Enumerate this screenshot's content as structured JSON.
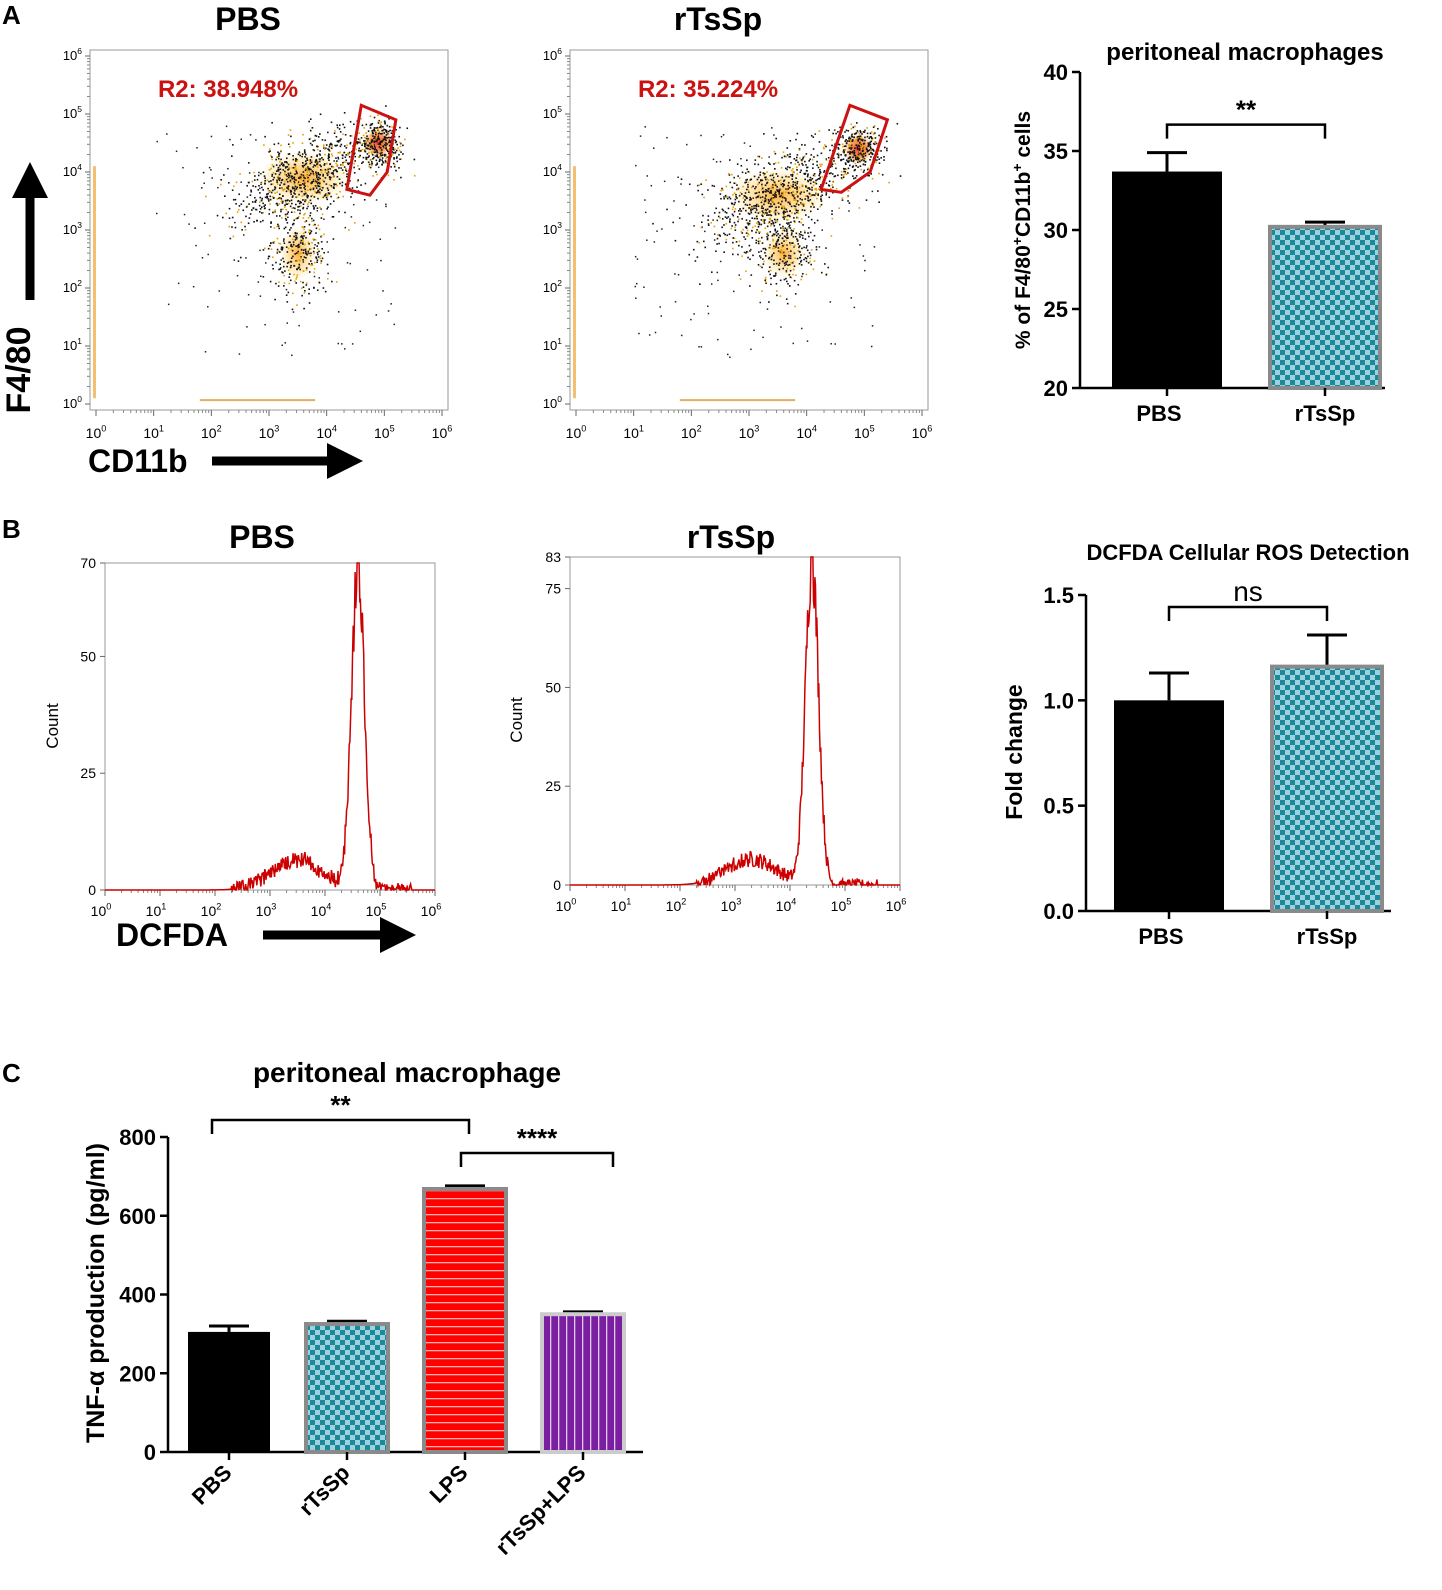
{
  "figure": {
    "panel_labels": [
      "A",
      "B",
      "C"
    ]
  },
  "chart_data": [
    {
      "type": "scatter",
      "id": "flow_pbs",
      "title": "PBS",
      "gate_label": "R2: 38.948%",
      "x_axis_label": "CD11b",
      "y_axis_label": "F4/80",
      "x_ticks": [
        "0",
        "1",
        "2",
        "3",
        "4",
        "5",
        "6"
      ],
      "y_ticks": [
        "0",
        "1",
        "2",
        "3",
        "4",
        "5",
        "6"
      ],
      "tick_base": "10",
      "xlim": [
        0,
        6
      ],
      "ylim": [
        0,
        6
      ],
      "clusters": [
        {
          "name": "main",
          "center": [
            3.6,
            3.9
          ],
          "spread": [
            0.75,
            0.45
          ]
        },
        {
          "name": "gate",
          "center": [
            4.9,
            4.5
          ],
          "spread": [
            0.25,
            0.25
          ]
        },
        {
          "name": "lower",
          "center": [
            3.5,
            2.6
          ],
          "spread": [
            0.3,
            0.45
          ]
        }
      ],
      "gate_polygon": [
        [
          4.35,
          3.7
        ],
        [
          4.6,
          5.15
        ],
        [
          5.2,
          4.9
        ],
        [
          5.05,
          4.0
        ],
        [
          4.75,
          3.6
        ]
      ]
    },
    {
      "type": "scatter",
      "id": "flow_rtssp",
      "title": "rTsSp",
      "gate_label": "R2: 35.224%",
      "x_axis_label": "",
      "y_axis_label": "",
      "x_ticks": [
        "0",
        "1",
        "2",
        "3",
        "4",
        "5",
        "6"
      ],
      "y_ticks": [
        "0",
        "1",
        "2",
        "3",
        "4",
        "5",
        "6"
      ],
      "tick_base": "10",
      "xlim": [
        0,
        6
      ],
      "ylim": [
        0,
        6
      ],
      "clusters": [
        {
          "name": "main",
          "center": [
            3.5,
            3.6
          ],
          "spread": [
            0.8,
            0.45
          ]
        },
        {
          "name": "gate",
          "center": [
            4.9,
            4.4
          ],
          "spread": [
            0.25,
            0.25
          ]
        },
        {
          "name": "lower",
          "center": [
            3.6,
            2.6
          ],
          "spread": [
            0.35,
            0.4
          ]
        }
      ],
      "gate_polygon": [
        [
          4.25,
          3.7
        ],
        [
          4.75,
          5.15
        ],
        [
          5.4,
          4.9
        ],
        [
          5.1,
          4.0
        ],
        [
          4.6,
          3.65
        ]
      ]
    },
    {
      "type": "bar",
      "id": "bar_macrophages",
      "title": "peritoneal macrophages",
      "ylabel_prefix": "% of F4/80",
      "ylabel_mid": "CD11b",
      "ylabel_suffix": " cells",
      "ylabel_sup": "+",
      "categories": [
        "PBS",
        "rTsSp"
      ],
      "values": [
        33.7,
        30.2
      ],
      "errors": [
        1.2,
        0.3
      ],
      "ylim": [
        20,
        40
      ],
      "yticks": [
        "20",
        "25",
        "30",
        "35",
        "40"
      ],
      "significance": [
        {
          "between": [
            0,
            1
          ],
          "label": "**"
        }
      ],
      "colors": [
        "#000000",
        "#1a8a9a"
      ]
    },
    {
      "type": "histogram",
      "id": "hist_pbs",
      "title": "PBS",
      "x_axis_label": "DCFDA",
      "ylabel": "Count",
      "y_ticks": [
        "0",
        "25",
        "50",
        "70"
      ],
      "x_ticks": [
        "0",
        "1",
        "2",
        "3",
        "4",
        "5",
        "6"
      ],
      "tick_base": "10",
      "ylim": [
        0,
        70
      ],
      "peak_log": 4.6,
      "peak_count": 70,
      "color": "#cc0000"
    },
    {
      "type": "histogram",
      "id": "hist_rtssp",
      "title": "rTsSp",
      "x_axis_label": "",
      "ylabel": "Count",
      "y_ticks": [
        "0",
        "25",
        "50",
        "75",
        "83"
      ],
      "x_ticks": [
        "0",
        "1",
        "2",
        "3",
        "4",
        "5",
        "6"
      ],
      "tick_base": "10",
      "ylim": [
        0,
        83
      ],
      "peak_log": 4.4,
      "peak_count": 83,
      "color": "#cc0000"
    },
    {
      "type": "bar",
      "id": "bar_ros",
      "title": "DCFDA Cellular ROS Detection",
      "ylabel": "Fold change",
      "categories": [
        "PBS",
        "rTsSp"
      ],
      "values": [
        1.0,
        1.16
      ],
      "errors": [
        0.13,
        0.15
      ],
      "ylim": [
        0.0,
        1.5
      ],
      "yticks": [
        "0.0",
        "0.5",
        "1.0",
        "1.5"
      ],
      "significance": [
        {
          "between": [
            0,
            1
          ],
          "label": "ns"
        }
      ],
      "colors": [
        "#000000",
        "#1a8a9a"
      ]
    },
    {
      "type": "bar",
      "id": "bar_tnf",
      "title": "peritoneal macrophage",
      "ylabel": "TNF-α production (pg/ml)",
      "categories": [
        "PBS",
        "rTsSp",
        "LPS",
        "rTsSp+LPS"
      ],
      "values": [
        305,
        325,
        668,
        350
      ],
      "errors": [
        15,
        7,
        8,
        6
      ],
      "ylim": [
        0,
        800
      ],
      "yticks": [
        "0",
        "200",
        "400",
        "600",
        "800"
      ],
      "significance": [
        {
          "between": [
            0,
            2
          ],
          "label": "**"
        },
        {
          "between": [
            2,
            3
          ],
          "label": "****"
        }
      ],
      "colors": [
        "#000000",
        "#1a8a9a",
        "#ff0000",
        "#7a1fa0"
      ]
    }
  ]
}
